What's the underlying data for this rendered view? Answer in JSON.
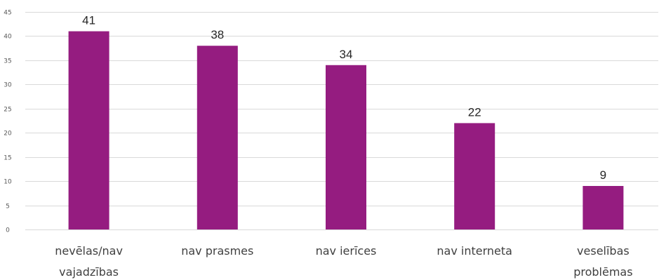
{
  "chart_data": {
    "type": "bar",
    "categories": [
      [
        "nevēlas/nav",
        "vajadzības"
      ],
      [
        "nav prasmes"
      ],
      [
        "nav ierīces"
      ],
      [
        "nav interneta"
      ],
      [
        "veselības",
        "problēmas"
      ]
    ],
    "values": [
      41,
      38,
      34,
      22,
      9
    ],
    "data_labels": [
      "41",
      "38",
      "34",
      "22",
      "9"
    ],
    "ylim": [
      0,
      45
    ],
    "yticks": [
      0,
      5,
      10,
      15,
      20,
      25,
      30,
      35,
      40,
      45
    ],
    "grid": true,
    "legend": "none",
    "bar_color": "#951c80",
    "title": "",
    "xlabel": "",
    "ylabel": ""
  }
}
